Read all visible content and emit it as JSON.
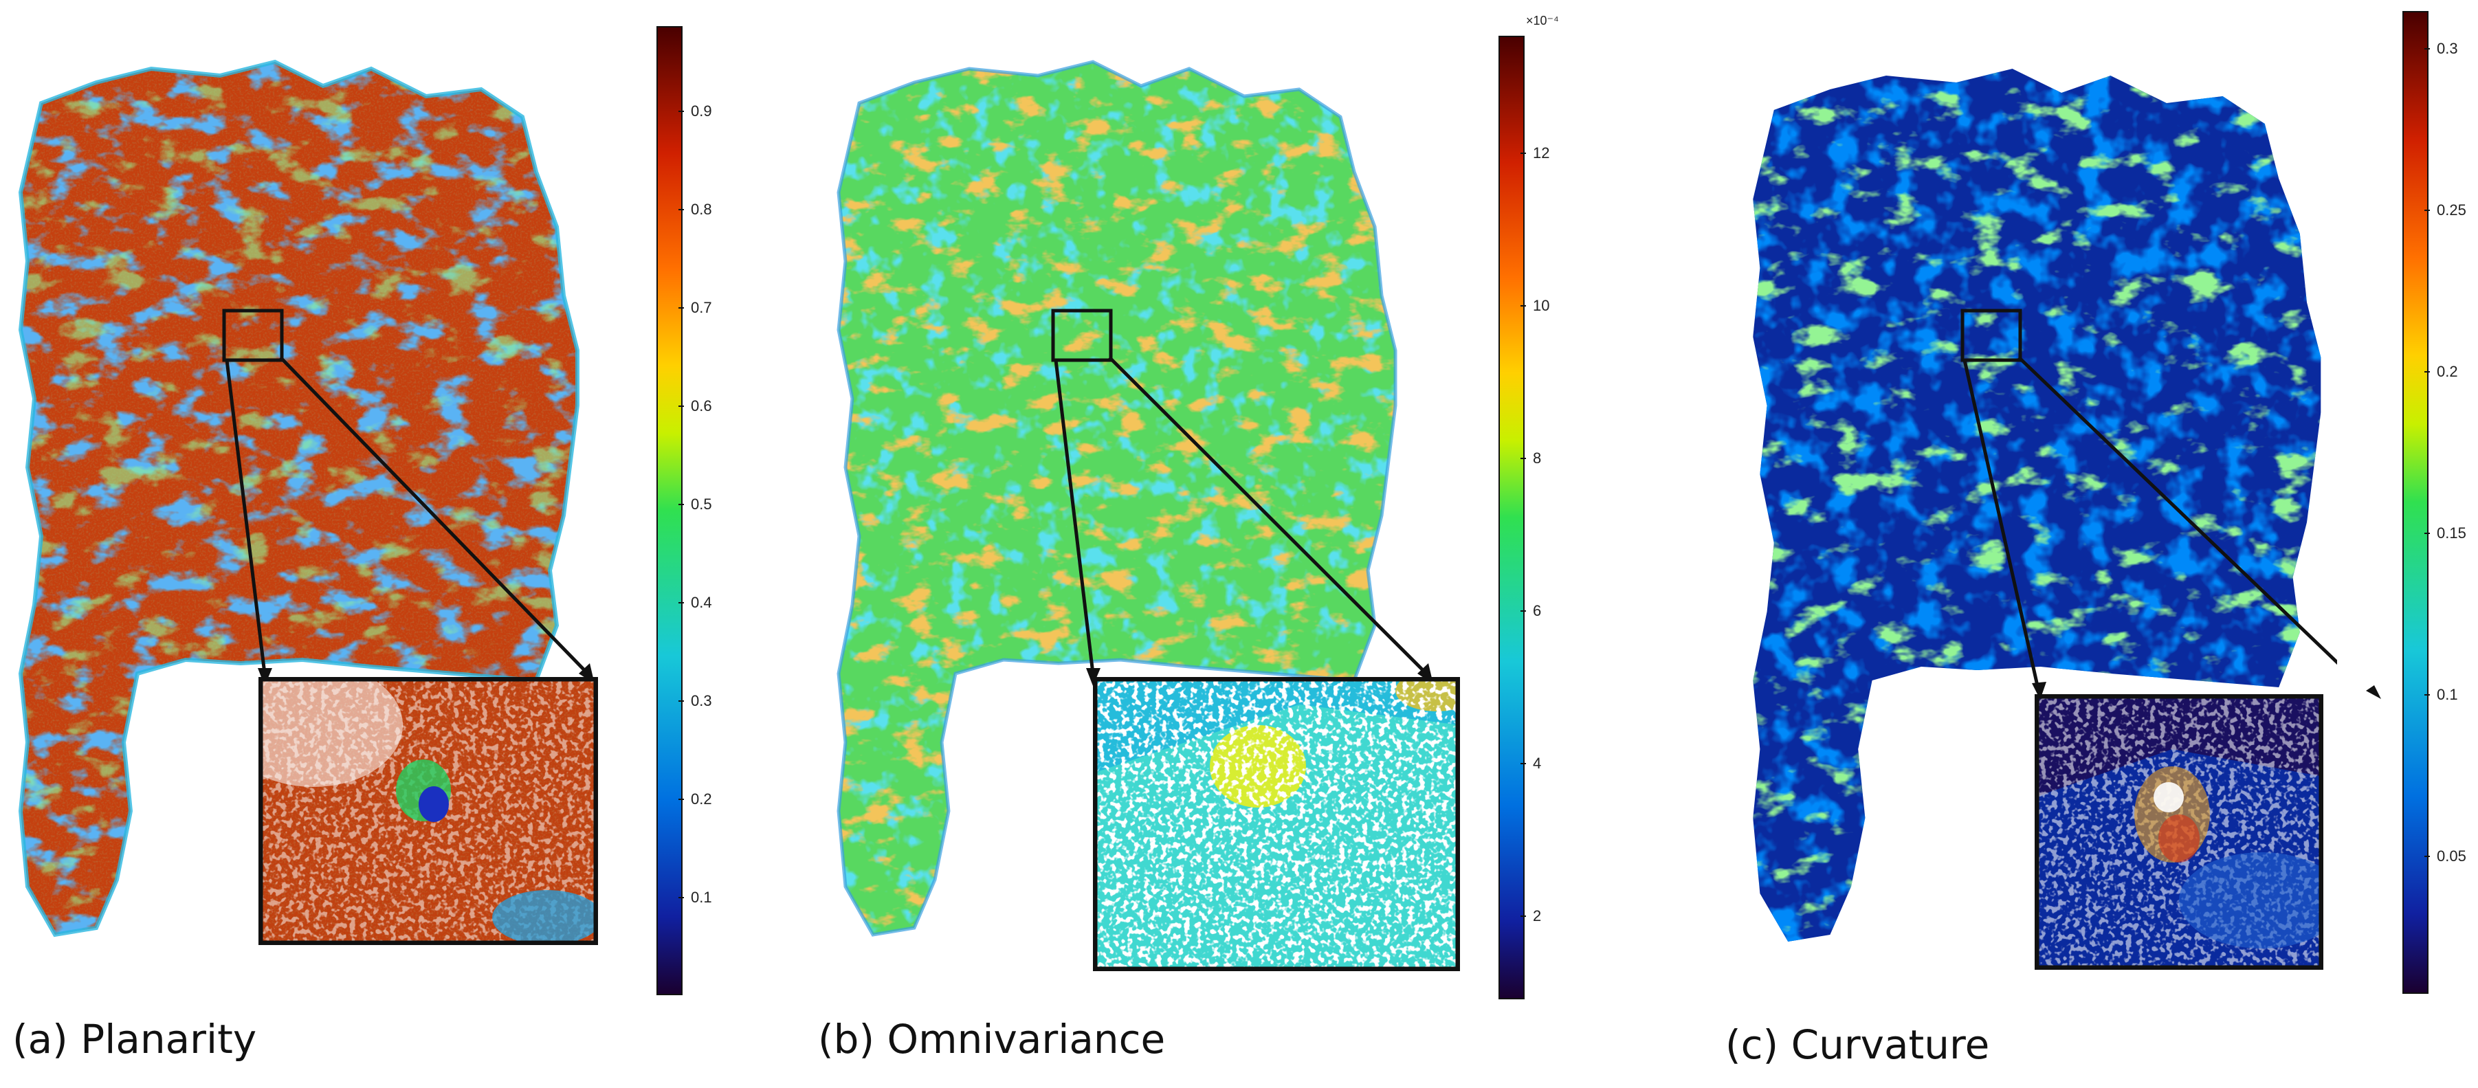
{
  "panels": [
    {
      "caption": "(a) Planarity",
      "colorbar_ticks": [
        "0.1",
        "0.2",
        "0.3",
        "0.4",
        "0.5",
        "0.6",
        "0.7",
        "0.8",
        "0.9"
      ],
      "colorbar_exponent": "",
      "dominant_color": "#c23a10"
    },
    {
      "caption": "(b) Omnivariance",
      "colorbar_ticks": [
        "2",
        "4",
        "6",
        "8",
        "10",
        "12"
      ],
      "colorbar_exponent": "×10⁻⁴",
      "dominant_color": "#5ad85a"
    },
    {
      "caption": "(c) Curvature",
      "colorbar_ticks": [
        "0.05",
        "0.1",
        "0.15",
        "0.2",
        "0.25",
        "0.3"
      ],
      "colorbar_exponent": "",
      "dominant_color": "#0a2a9e"
    }
  ],
  "colormap": "jet",
  "colormap_stops": [
    "#1a0030",
    "#1020a0",
    "#0070e0",
    "#18c8d8",
    "#30e050",
    "#c8f000",
    "#ffd000",
    "#ff7000",
    "#d02000",
    "#4a0000"
  ]
}
